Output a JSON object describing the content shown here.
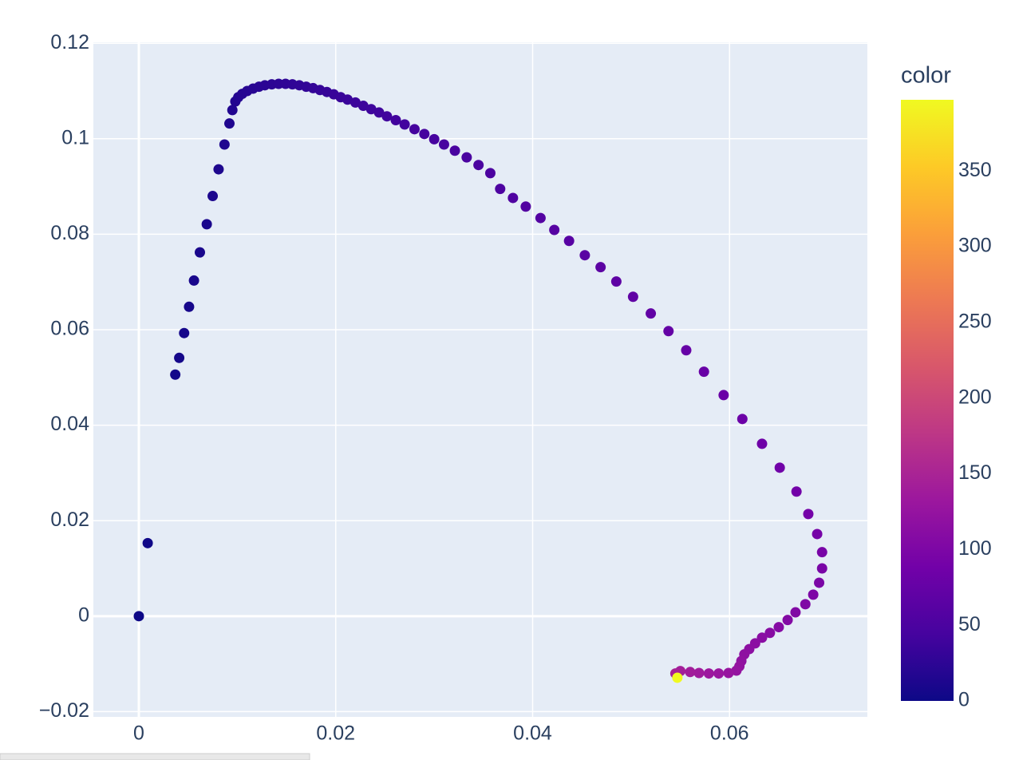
{
  "chart_data": {
    "type": "scatter",
    "x": [
      0,
      0.0009,
      0.0037,
      0.0041,
      0.0046,
      0.0051,
      0.0056,
      0.0062,
      0.0069,
      0.0075,
      0.0081,
      0.0087,
      0.0092,
      0.0095,
      0.0098,
      0.0101,
      0.0105,
      0.011,
      0.0116,
      0.0122,
      0.0128,
      0.0135,
      0.0142,
      0.0149,
      0.0156,
      0.0163,
      0.017,
      0.0177,
      0.0184,
      0.0191,
      0.0198,
      0.0205,
      0.0212,
      0.022,
      0.0228,
      0.0236,
      0.0244,
      0.0252,
      0.0261,
      0.027,
      0.028,
      0.029,
      0.03,
      0.031,
      0.0321,
      0.0333,
      0.0345,
      0.0357,
      0.0367,
      0.038,
      0.0393,
      0.0408,
      0.0422,
      0.0437,
      0.0453,
      0.0469,
      0.0485,
      0.0502,
      0.052,
      0.0538,
      0.0556,
      0.0574,
      0.0594,
      0.0613,
      0.0633,
      0.0651,
      0.0668,
      0.068,
      0.0689,
      0.0694,
      0.0694,
      0.0691,
      0.0685,
      0.0677,
      0.0667,
      0.0659,
      0.065,
      0.0641,
      0.0633,
      0.0626,
      0.062,
      0.0615,
      0.0612,
      0.061,
      0.0607,
      0.0599,
      0.0589,
      0.0579,
      0.0569,
      0.056,
      0.055,
      0.0545,
      0.0547
    ],
    "y": [
      0,
      0.0153,
      0.0506,
      0.0541,
      0.0593,
      0.0648,
      0.0703,
      0.0762,
      0.0821,
      0.088,
      0.0936,
      0.0988,
      0.1032,
      0.106,
      0.1078,
      0.1087,
      0.1094,
      0.11,
      0.1105,
      0.1109,
      0.1112,
      0.1114,
      0.1115,
      0.1115,
      0.1114,
      0.1112,
      0.1109,
      0.1106,
      0.1102,
      0.1098,
      0.1093,
      0.1087,
      0.1082,
      0.1076,
      0.1069,
      0.1062,
      0.1055,
      0.1047,
      0.1039,
      0.103,
      0.102,
      0.101,
      0.0999,
      0.0988,
      0.0975,
      0.0961,
      0.0945,
      0.0928,
      0.0895,
      0.0876,
      0.0858,
      0.0834,
      0.0809,
      0.0786,
      0.0756,
      0.0731,
      0.0701,
      0.0669,
      0.0634,
      0.0597,
      0.0557,
      0.0512,
      0.0463,
      0.0413,
      0.0361,
      0.0311,
      0.0261,
      0.0214,
      0.0172,
      0.0134,
      0.01,
      0.007,
      0.0045,
      0.0025,
      0.0008,
      -0.0008,
      -0.0023,
      -0.0035,
      -0.0045,
      -0.0057,
      -0.0069,
      -0.008,
      -0.0094,
      -0.0105,
      -0.0114,
      -0.0119,
      -0.012,
      -0.012,
      -0.0119,
      -0.0117,
      -0.0115,
      -0.012,
      -0.0129
    ],
    "color": [
      0,
      2,
      5,
      6,
      7,
      8,
      9,
      10,
      11,
      12,
      13,
      14,
      15,
      16,
      17,
      18,
      19,
      20,
      21,
      22,
      23,
      24,
      25,
      26,
      27,
      28,
      29,
      30,
      31,
      32,
      33,
      34,
      35,
      36,
      37,
      38,
      39,
      40,
      41,
      42,
      43,
      44,
      45,
      46,
      47,
      48,
      49,
      50,
      52,
      54,
      56,
      58,
      60,
      62,
      64,
      66,
      68,
      70,
      72,
      74,
      76,
      78,
      80,
      82,
      84,
      86,
      88,
      90,
      92,
      94,
      96,
      98,
      100,
      102,
      104,
      106,
      108,
      110,
      112,
      114,
      116,
      118,
      120,
      122,
      124,
      127,
      130,
      133,
      136,
      139,
      142,
      145,
      397
    ],
    "colorscale": [
      "#0d0887",
      "#46039f",
      "#7201a8",
      "#9c179e",
      "#bd3786",
      "#d8576b",
      "#ed7953",
      "#fb9f3a",
      "#fdca26",
      "#f0f921"
    ],
    "colorbar_title": "color",
    "colorlim": [
      0,
      397
    ],
    "colorticks": [
      0,
      50,
      100,
      150,
      200,
      250,
      300,
      350
    ],
    "xlim": [
      -0.00462,
      0.074
    ],
    "ylim": [
      -0.0211,
      0.1202
    ],
    "xticks": [
      0,
      0.02,
      0.04,
      0.06
    ],
    "yticks": [
      {
        "value": -0.02,
        "label": "−0.02"
      },
      0,
      0.02,
      0.04,
      0.06,
      0.08,
      0.1,
      0.12
    ],
    "grid": true
  }
}
